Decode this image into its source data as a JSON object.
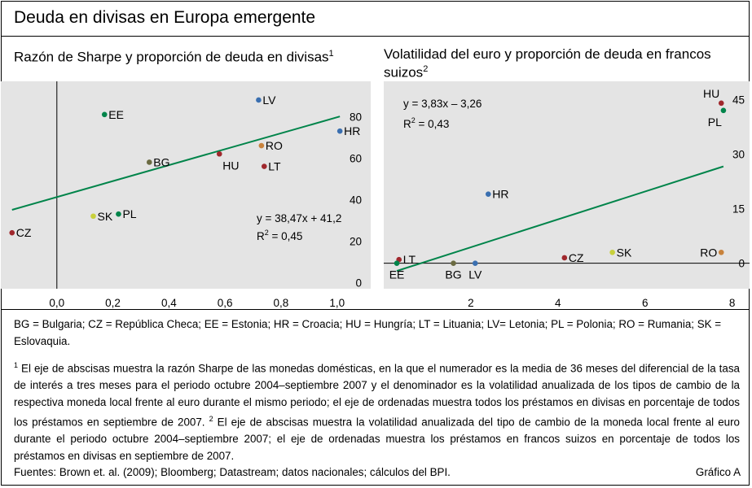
{
  "header": {
    "title": "Deuda en divisas en Europa emergente"
  },
  "panels": {
    "left": {
      "title": "Razón de Sharpe y proporción de deuda en divisas",
      "footnote_mark": "1",
      "equation": "y = 38,47x + 41,2",
      "r2_prefix": "R",
      "r2_exp": "2",
      "r2_value": " = 0,45"
    },
    "right": {
      "title": "Volatilidad del euro y proporción de deuda en francos suizos",
      "footnote_mark": "2",
      "equation": "y = 3,83x – 3,26",
      "r2_prefix": "R",
      "r2_exp": "2",
      "r2_value": " = 0,43"
    }
  },
  "chart_data": [
    {
      "type": "scatter",
      "title": "Razón de Sharpe y proporción de deuda en divisas",
      "xlim": [
        -0.2,
        1.12
      ],
      "ylim": [
        -3,
        97
      ],
      "x_ticks": [
        0.0,
        0.2,
        0.4,
        0.6,
        0.8,
        1.0
      ],
      "x_tick_labels": [
        "0,0",
        "0,2",
        "0,4",
        "0,6",
        "0,8",
        "1,0"
      ],
      "y_ticks": [
        0,
        20,
        40,
        60,
        80
      ],
      "y_tick_labels": [
        "0",
        "20",
        "40",
        "60",
        "80"
      ],
      "y_axis_side": "right",
      "zero_line": "vertical at x = 0",
      "trendline": {
        "slope": 38.47,
        "intercept": 41.2,
        "x_range": [
          -0.16,
          1.01
        ]
      },
      "points": [
        {
          "label": "EE",
          "x": 0.17,
          "y": 81,
          "color": "#00844a",
          "label_pos": "right"
        },
        {
          "label": "LV",
          "x": 0.72,
          "y": 88,
          "color": "#3a6fb0",
          "label_pos": "right"
        },
        {
          "label": "HR",
          "x": 1.01,
          "y": 73,
          "color": "#3a6fb0",
          "label_pos": "right"
        },
        {
          "label": "BG",
          "x": 0.33,
          "y": 58,
          "color": "#6b6b42",
          "label_pos": "right"
        },
        {
          "label": "HU",
          "x": 0.58,
          "y": 62,
          "color": "#a0282d",
          "label_pos": "below-right"
        },
        {
          "label": "RO",
          "x": 0.73,
          "y": 66,
          "color": "#c8823c",
          "label_pos": "right"
        },
        {
          "label": "LT",
          "x": 0.74,
          "y": 56,
          "color": "#a0282d",
          "label_pos": "right"
        },
        {
          "label": "SK",
          "x": 0.13,
          "y": 32,
          "color": "#c8d03c",
          "label_pos": "right"
        },
        {
          "label": "PL",
          "x": 0.22,
          "y": 33,
          "color": "#00844a",
          "label_pos": "right"
        },
        {
          "label": "CZ",
          "x": -0.16,
          "y": 24,
          "color": "#a0282d",
          "label_pos": "right"
        }
      ]
    },
    {
      "type": "scatter",
      "title": "Volatilidad del euro y proporción de deuda en francos suizos",
      "xlim": [
        0.0,
        8.4
      ],
      "ylim": [
        -7,
        50
      ],
      "x_ticks": [
        2,
        4,
        6,
        8
      ],
      "x_tick_labels": [
        "2",
        "4",
        "6",
        "8"
      ],
      "y_ticks": [
        0,
        15,
        30,
        45
      ],
      "y_tick_labels": [
        "0",
        "15",
        "30",
        "45"
      ],
      "y_axis_side": "right",
      "zero_line": "horizontal at y = 0",
      "trendline": {
        "slope": 3.83,
        "intercept": -3.26,
        "x_range": [
          0.3,
          7.8
        ]
      },
      "points": [
        {
          "label": "HU",
          "x": 7.75,
          "y": 44,
          "color": "#a0282d",
          "label_pos": "above-left"
        },
        {
          "label": "PL",
          "x": 7.8,
          "y": 42,
          "color": "#00844a",
          "label_pos": "below-left"
        },
        {
          "label": "HR",
          "x": 2.4,
          "y": 19,
          "color": "#3a6fb0",
          "label_pos": "right"
        },
        {
          "label": "LT",
          "x": 0.35,
          "y": 1,
          "color": "#a0282d",
          "label_pos": "right"
        },
        {
          "label": "EE",
          "x": 0.3,
          "y": 0,
          "color": "#00844a",
          "label_pos": "below"
        },
        {
          "label": "BG",
          "x": 1.6,
          "y": 0,
          "color": "#6b6b42",
          "label_pos": "below"
        },
        {
          "label": "LV",
          "x": 2.1,
          "y": 0,
          "color": "#3a6fb0",
          "label_pos": "below"
        },
        {
          "label": "CZ",
          "x": 4.15,
          "y": 1.5,
          "color": "#a0282d",
          "label_pos": "right"
        },
        {
          "label": "SK",
          "x": 5.25,
          "y": 3,
          "color": "#c8d03c",
          "label_pos": "right"
        },
        {
          "label": "RO",
          "x": 7.75,
          "y": 3,
          "color": "#c8823c",
          "label_pos": "left"
        }
      ]
    }
  ],
  "legend": "BG = Bulgaria; CZ = República Checa; EE = Estonia; HR = Croacia; HU = Hungría; LT = Lituania; LV= Letonia; PL = Polonia; RO = Rumania; SK = Eslovaquia.",
  "footnotes": {
    "n1_mark": "1",
    "n1_text": " El eje de abscisas muestra la razón Sharpe de las monedas domésticas, en la que el numerador es la media de 36 meses del diferencial de la tasa de interés a tres meses para el periodo octubre 2004–septiembre 2007 y el denominador es la volatilidad anualizada de los tipos de cambio de la respectiva moneda local frente al euro durante el mismo periodo; el eje de ordenadas muestra todos los préstamos en divisas en porcentaje de todos los préstamos en septiembre de 2007. ",
    "n2_mark": "2",
    "n2_text": " El eje de abscisas muestra la volatilidad anualizada del tipo de cambio de la moneda local frente al euro durante el periodo octubre 2004–septiembre 2007; el eje de ordenadas muestra los préstamos en francos suizos en porcentaje de todos los préstamos en divisas en septiembre de 2007."
  },
  "footer": {
    "sources": "Fuentes: Brown et. al. (2009); Bloomberg; Datastream; datos nacionales; cálculos del BPI.",
    "grafico": "Gráfico A"
  },
  "colors": {
    "plot_bg": "#e4e4e4",
    "trendline": "#00844a"
  }
}
